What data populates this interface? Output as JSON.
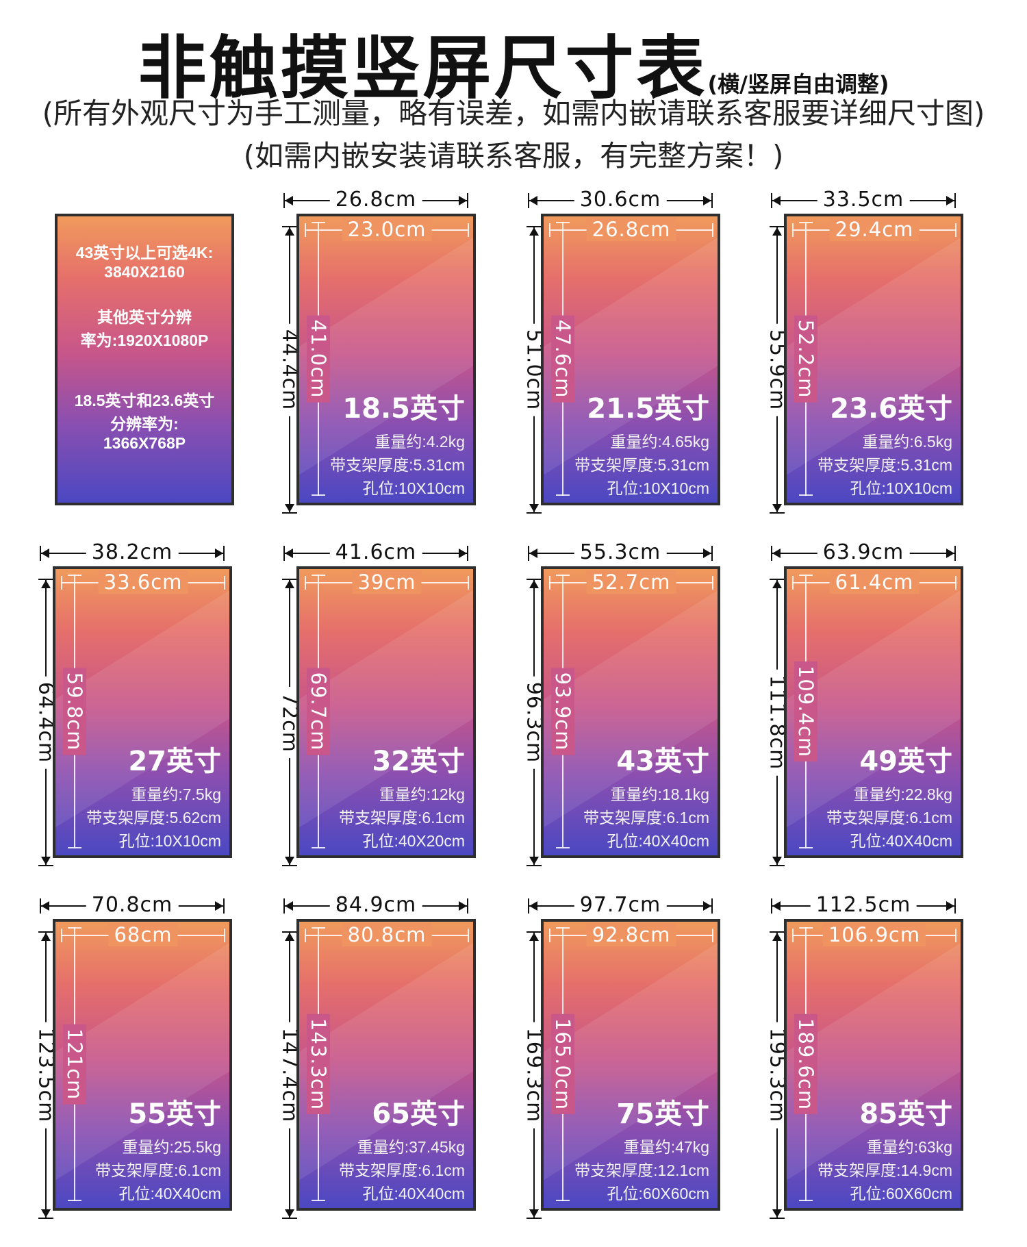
{
  "header": {
    "title": "非触摸竖屏尺寸表",
    "title_note": "(横/竖屏自由调整)",
    "subtitle_1": "(所有外观尺寸为手工测量，略有误差，如需内嵌请联系客服要详细尺寸图)",
    "subtitle_2": "(如需内嵌安装请联系客服，有完整方案！)"
  },
  "info_box": {
    "line_1": "43英寸以上可选4K:",
    "line_2": "3840X2160",
    "line_3": "其他英寸分辨",
    "line_4": "率为:1920X1080P",
    "line_5": "18.5英寸和23.6英寸",
    "line_6": "分辨率为:",
    "line_7": "1366X768P"
  },
  "screens": [
    {
      "outer_width": "26.8cm",
      "outer_height": "44.4cm",
      "inner_width": "23.0cm",
      "inner_height": "41.0cm",
      "size": "18.5英寸",
      "weight": "重量约:4.2kg",
      "thickness": "带支架厚度:5.31cm",
      "holes": "孔位:10X10cm"
    },
    {
      "outer_width": "30.6cm",
      "outer_height": "51.0cm",
      "inner_width": "26.8cm",
      "inner_height": "47.6cm",
      "size": "21.5英寸",
      "weight": "重量约:4.65kg",
      "thickness": "带支架厚度:5.31cm",
      "holes": "孔位:10X10cm"
    },
    {
      "outer_width": "33.5cm",
      "outer_height": "55.9cm",
      "inner_width": "29.4cm",
      "inner_height": "52.2cm",
      "size": "23.6英寸",
      "weight": "重量约:6.5kg",
      "thickness": "带支架厚度:5.31cm",
      "holes": "孔位:10X10cm"
    },
    {
      "outer_width": "38.2cm",
      "outer_height": "64.4cm",
      "inner_width": "33.6cm",
      "inner_height": "59.8cm",
      "size": "27英寸",
      "weight": "重量约:7.5kg",
      "thickness": "带支架厚度:5.62cm",
      "holes": "孔位:10X10cm"
    },
    {
      "outer_width": "41.6cm",
      "outer_height": "72cm",
      "inner_width": "39cm",
      "inner_height": "69.7cm",
      "size": "32英寸",
      "weight": "重量约:12kg",
      "thickness": "带支架厚度:6.1cm",
      "holes": "孔位:40X20cm"
    },
    {
      "outer_width": "55.3cm",
      "outer_height": "96.3cm",
      "inner_width": "52.7cm",
      "inner_height": "93.9cm",
      "size": "43英寸",
      "weight": "重量约:18.1kg",
      "thickness": "带支架厚度:6.1cm",
      "holes": "孔位:40X40cm"
    },
    {
      "outer_width": "63.9cm",
      "outer_height": "111.8cm",
      "inner_width": "61.4cm",
      "inner_height": "109.4cm",
      "size": "49英寸",
      "weight": "重量约:22.8kg",
      "thickness": "带支架厚度:6.1cm",
      "holes": "孔位:40X40cm"
    },
    {
      "outer_width": "70.8cm",
      "outer_height": "123.5cm",
      "inner_width": "68cm",
      "inner_height": "121cm",
      "size": "55英寸",
      "weight": "重量约:25.5kg",
      "thickness": "带支架厚度:6.1cm",
      "holes": "孔位:40X40cm"
    },
    {
      "outer_width": "84.9cm",
      "outer_height": "147.4cm",
      "inner_width": "80.8cm",
      "inner_height": "143.3cm",
      "size": "65英寸",
      "weight": "重量约:37.45kg",
      "thickness": "带支架厚度:6.1cm",
      "holes": "孔位:40X40cm"
    },
    {
      "outer_width": "97.7cm",
      "outer_height": "169.3cm",
      "inner_width": "92.8cm",
      "inner_height": "165.0cm",
      "size": "75英寸",
      "weight": "重量约:47kg",
      "thickness": "带支架厚度:12.1cm",
      "holes": "孔位:60X60cm"
    },
    {
      "outer_width": "112.5cm",
      "outer_height": "195.3cm",
      "inner_width": "106.9cm",
      "inner_height": "189.6cm",
      "size": "85英寸",
      "weight": "重量约:63kg",
      "thickness": "带支架厚度:14.9cm",
      "holes": "孔位:60X60cm"
    }
  ]
}
